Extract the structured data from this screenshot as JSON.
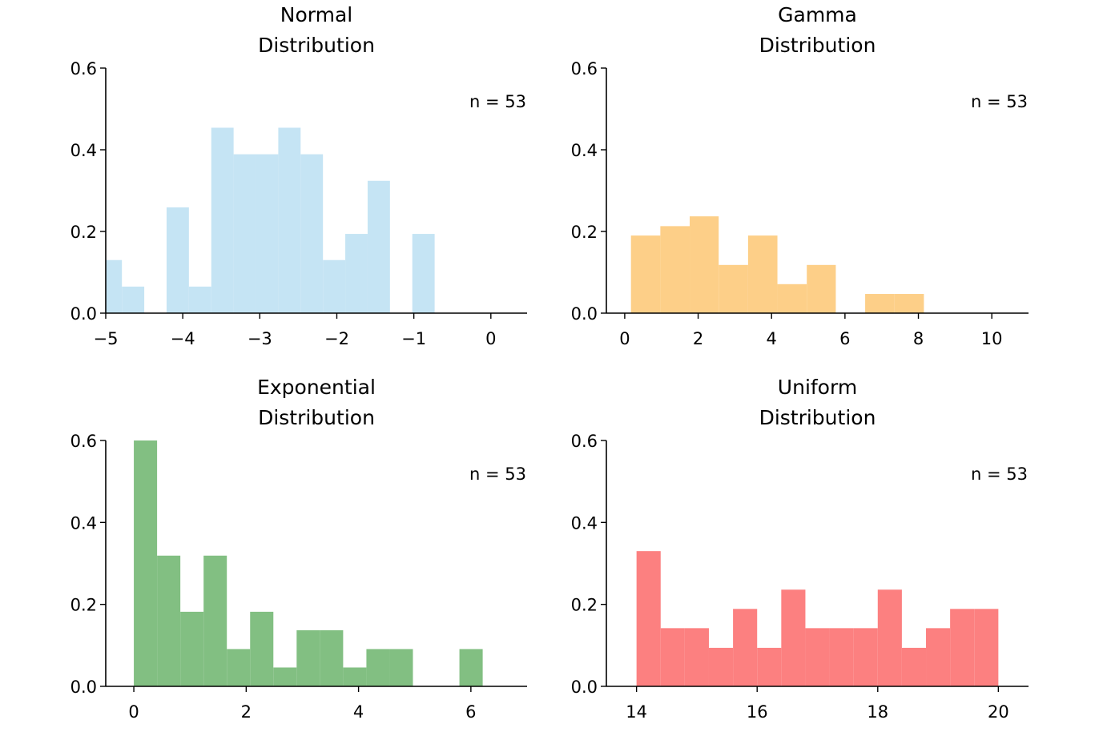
{
  "chart_data": [
    {
      "type": "histogram",
      "title": "Normal\nDistribution",
      "annotation": "n = 53",
      "color": "#c5e4f4",
      "bins": [
        -5.08,
        -4.79,
        -4.5,
        -4.21,
        -3.92,
        -3.63,
        -3.34,
        -3.05,
        -2.76,
        -2.47,
        -2.18,
        -1.89,
        -1.6,
        -1.31,
        -1.02,
        -0.73
      ],
      "values": [
        0.13,
        0.065,
        0,
        0.259,
        0.065,
        0.454,
        0.389,
        0.389,
        0.454,
        0.389,
        0.13,
        0.194,
        0.324,
        0,
        0.194
      ],
      "xlim": [
        -5,
        0.47
      ],
      "ylim": [
        0,
        0.6
      ],
      "xticks": [
        {
          "value": -5,
          "label": "−5"
        },
        {
          "value": -4,
          "label": "−4"
        },
        {
          "value": -3,
          "label": "−3"
        },
        {
          "value": -2,
          "label": "−2"
        },
        {
          "value": -1,
          "label": "−1"
        },
        0
      ],
      "yticks": [
        {
          "value": 0,
          "label": "0.0"
        },
        {
          "value": 0.2,
          "label": "0.2"
        },
        {
          "value": 0.4,
          "label": "0.4"
        },
        {
          "value": 0.6,
          "label": "0.6"
        }
      ]
    },
    {
      "type": "histogram",
      "title": "Gamma\nDistribution",
      "annotation": "n = 53",
      "color": "#fdcf88",
      "bins": [
        0.17,
        0.97,
        1.77,
        2.56,
        3.36,
        4.16,
        4.96,
        5.75,
        6.55,
        7.35,
        8.15
      ],
      "values": [
        0.19,
        0.213,
        0.237,
        0.118,
        0.19,
        0.071,
        0.118,
        0,
        0.047,
        0.047
      ],
      "xlim": [
        -0.5,
        11.0
      ],
      "ylim": [
        0,
        0.6
      ],
      "xticks": [
        0,
        2,
        4,
        6,
        8,
        10
      ],
      "yticks": [
        {
          "value": 0,
          "label": "0.0"
        },
        {
          "value": 0.2,
          "label": "0.2"
        },
        {
          "value": 0.4,
          "label": "0.4"
        },
        {
          "value": 0.6,
          "label": "0.6"
        }
      ]
    },
    {
      "type": "histogram",
      "title": "Exponential\nDistribution",
      "annotation": "n = 53",
      "color": "#82bf82",
      "bins": [
        0,
        0.414,
        0.828,
        1.242,
        1.656,
        2.07,
        2.484,
        2.898,
        3.312,
        3.726,
        4.14,
        4.554,
        4.968,
        5.382,
        5.796,
        6.21
      ],
      "values": [
        0.6,
        0.319,
        0.182,
        0.319,
        0.091,
        0.182,
        0.046,
        0.137,
        0.137,
        0.046,
        0.091,
        0.091,
        0,
        0,
        0.091
      ],
      "xlim": [
        -0.5,
        7.0
      ],
      "ylim": [
        0,
        0.6
      ],
      "xticks": [
        0,
        2,
        4,
        6
      ],
      "yticks": [
        {
          "value": 0,
          "label": "0.0"
        },
        {
          "value": 0.2,
          "label": "0.2"
        },
        {
          "value": 0.4,
          "label": "0.4"
        },
        {
          "value": 0.6,
          "label": "0.6"
        }
      ]
    },
    {
      "type": "histogram",
      "title": "Uniform\nDistribution",
      "annotation": "n = 53",
      "color": "#fc8080",
      "bins": [
        14.0,
        14.4,
        14.8,
        15.2,
        15.6,
        16.0,
        16.4,
        16.8,
        17.2,
        17.6,
        18.0,
        18.4,
        18.8,
        19.2,
        19.6,
        20.0
      ],
      "values": [
        0.33,
        0.142,
        0.142,
        0.094,
        0.189,
        0.094,
        0.236,
        0.142,
        0.142,
        0.142,
        0.236,
        0.094,
        0.142,
        0.189,
        0.189
      ],
      "xlim": [
        13.5,
        20.5
      ],
      "ylim": [
        0,
        0.6
      ],
      "xticks": [
        14,
        16,
        18,
        20
      ],
      "yticks": [
        {
          "value": 0,
          "label": "0.0"
        },
        {
          "value": 0.2,
          "label": "0.2"
        },
        {
          "value": 0.4,
          "label": "0.4"
        },
        {
          "value": 0.6,
          "label": "0.6"
        }
      ]
    }
  ]
}
